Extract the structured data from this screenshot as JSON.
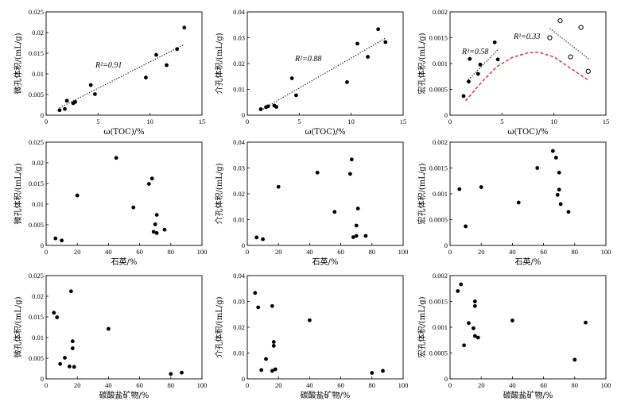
{
  "chart_data": [
    {
      "id": "a",
      "type": "scatter",
      "xlabel": "ω(TOC)/%",
      "ylabel": "微孔体积/(mL/g)",
      "xlim": [
        0,
        15
      ],
      "ylim": [
        0,
        0.025
      ],
      "xticks": [
        "0",
        "5",
        "10",
        "15"
      ],
      "yticks": [
        "0",
        "0.005",
        "0.01",
        "0.015",
        "0.02",
        "0.025"
      ],
      "points": [
        [
          1.3,
          0.0012
        ],
        [
          1.8,
          0.0015
        ],
        [
          2.0,
          0.0035
        ],
        [
          2.6,
          0.0029
        ],
        [
          2.8,
          0.0032
        ],
        [
          4.3,
          0.0073
        ],
        [
          4.7,
          0.0051
        ],
        [
          9.6,
          0.0091
        ],
        [
          10.6,
          0.0146
        ],
        [
          11.6,
          0.0121
        ],
        [
          12.6,
          0.016
        ],
        [
          13.3,
          0.0212
        ]
      ],
      "trendlines": [
        {
          "x": [
            1.3,
            13.3
          ],
          "y": [
            0.0018,
            0.0171
          ],
          "color": "#000000",
          "label": "R²=0.91"
        }
      ]
    },
    {
      "id": "b",
      "type": "scatter",
      "xlabel": "ω(TOC)/%",
      "ylabel": "介孔体积/(mL/g)",
      "xlim": [
        0,
        15
      ],
      "ylim": [
        0,
        0.04
      ],
      "xticks": [
        "0",
        "5",
        "10",
        "15"
      ],
      "yticks": [
        "0",
        "0.01",
        "0.02",
        "0.03",
        "0.04"
      ],
      "points": [
        [
          1.3,
          0.0023
        ],
        [
          1.8,
          0.0031
        ],
        [
          2.0,
          0.0034
        ],
        [
          2.6,
          0.0037
        ],
        [
          2.8,
          0.0032
        ],
        [
          4.3,
          0.0143
        ],
        [
          4.7,
          0.0077
        ],
        [
          9.6,
          0.0128
        ],
        [
          10.6,
          0.0277
        ],
        [
          11.6,
          0.0226
        ],
        [
          12.6,
          0.0333
        ],
        [
          13.3,
          0.0283
        ]
      ],
      "trendlines": [
        {
          "x": [
            1.3,
            13.3
          ],
          "y": [
            0.0019,
            0.0298
          ],
          "color": "#000000",
          "label": "R²=0.88"
        }
      ]
    },
    {
      "id": "c",
      "type": "scatter",
      "xlabel": "ω(TOC)/%",
      "ylabel": "宏孔体积/(mL/g)",
      "xlim": [
        0,
        15
      ],
      "ylim": [
        0,
        0.002
      ],
      "xticks": [
        "0",
        "5",
        "10",
        "15"
      ],
      "yticks": [
        "0",
        "0.0005",
        "0.001",
        "0.0015",
        "0.002"
      ],
      "points": [
        [
          1.3,
          0.00037
        ],
        [
          1.8,
          0.00065
        ],
        [
          1.9,
          0.00109
        ],
        [
          2.7,
          0.0008
        ],
        [
          2.9,
          0.00098
        ],
        [
          4.3,
          0.00141
        ],
        [
          4.6,
          0.00108
        ]
      ],
      "open_points": [
        [
          9.6,
          0.0015
        ],
        [
          10.6,
          0.00183
        ],
        [
          11.6,
          0.00113
        ],
        [
          12.6,
          0.0017
        ],
        [
          13.3,
          0.00085
        ]
      ],
      "trendlines": [
        {
          "x": [
            1.6,
            4.7
          ],
          "y": [
            0.00065,
            0.00129
          ],
          "color": "#000000",
          "label": "R²=0.58"
        },
        {
          "x": [
            9.6,
            13.4
          ],
          "y": [
            0.00168,
            0.00108
          ],
          "color": "#000000",
          "label": "R²=0.33"
        }
      ],
      "curve": {
        "color": "#e8232b",
        "x": [
          1.5,
          3,
          4.5,
          6,
          7.5,
          8.5,
          10,
          11.5,
          13.3
        ],
        "y": [
          0.00028,
          0.00063,
          0.00094,
          0.00112,
          0.00121,
          0.00122,
          0.00113,
          0.00092,
          0.00068
        ]
      }
    },
    {
      "id": "d",
      "type": "scatter",
      "xlabel": "石英/%",
      "ylabel": "微孔体积/(mL/g)",
      "xlim": [
        0,
        100
      ],
      "ylim": [
        0,
        0.025
      ],
      "xticks": [
        "0",
        "20",
        "40",
        "60",
        "80",
        "100"
      ],
      "yticks": [
        "0",
        "0.005",
        "0.01",
        "0.015",
        "0.02",
        "0.025"
      ],
      "points": [
        [
          6,
          0.0017
        ],
        [
          10,
          0.0012
        ],
        [
          20,
          0.0121
        ],
        [
          45,
          0.0212
        ],
        [
          56,
          0.0092
        ],
        [
          66,
          0.0149
        ],
        [
          68,
          0.0162
        ],
        [
          69,
          0.0033
        ],
        [
          70,
          0.0051
        ],
        [
          71,
          0.003
        ],
        [
          71,
          0.0074
        ],
        [
          76,
          0.0038
        ]
      ]
    },
    {
      "id": "e",
      "type": "scatter",
      "xlabel": "石英/%",
      "ylabel": "介孔体积/(mL/g)",
      "xlim": [
        0,
        100
      ],
      "ylim": [
        0,
        0.04
      ],
      "xticks": [
        "0",
        "20",
        "40",
        "60",
        "80",
        "100"
      ],
      "yticks": [
        "0",
        "0.01",
        "0.02",
        "0.03",
        "0.04"
      ],
      "points": [
        [
          6,
          0.0031
        ],
        [
          10,
          0.0024
        ],
        [
          20,
          0.0227
        ],
        [
          45,
          0.0282
        ],
        [
          56,
          0.013
        ],
        [
          66,
          0.0277
        ],
        [
          67,
          0.0333
        ],
        [
          68,
          0.0032
        ],
        [
          70,
          0.0037
        ],
        [
          70,
          0.0077
        ],
        [
          71,
          0.0143
        ],
        [
          76,
          0.0037
        ]
      ]
    },
    {
      "id": "f",
      "type": "scatter",
      "xlabel": "石英/%",
      "ylabel": "宏孔体积/(mL/g)",
      "xlim": [
        0,
        100
      ],
      "ylim": [
        0,
        0.002
      ],
      "xticks": [
        "0",
        "20",
        "40",
        "60",
        "80",
        "100"
      ],
      "yticks": [
        "0",
        "0.0005",
        "0.001",
        "0.0015",
        "0.002"
      ],
      "points": [
        [
          6,
          0.00109
        ],
        [
          10,
          0.00037
        ],
        [
          20,
          0.00113
        ],
        [
          44,
          0.00083
        ],
        [
          56,
          0.0015
        ],
        [
          66,
          0.00183
        ],
        [
          68,
          0.0017
        ],
        [
          69,
          0.00098
        ],
        [
          70,
          0.00141
        ],
        [
          70,
          0.00108
        ],
        [
          71,
          0.0008
        ],
        [
          76,
          0.00065
        ]
      ]
    },
    {
      "id": "g",
      "type": "scatter",
      "xlabel": "碳酸盐矿物/%",
      "ylabel": "微孔体积/(mL/g)",
      "xlim": [
        0,
        100
      ],
      "ylim": [
        0,
        0.025
      ],
      "xticks": [
        "0",
        "20",
        "40",
        "60",
        "80",
        "100"
      ],
      "yticks": [
        "0",
        "0.005",
        "0.01",
        "0.015",
        "0.02",
        "0.025"
      ],
      "points": [
        [
          5,
          0.016
        ],
        [
          7,
          0.0149
        ],
        [
          9,
          0.0036
        ],
        [
          12,
          0.0051
        ],
        [
          15,
          0.003
        ],
        [
          16,
          0.0212
        ],
        [
          17,
          0.0091
        ],
        [
          17,
          0.0074
        ],
        [
          18,
          0.0029
        ],
        [
          40,
          0.0121
        ],
        [
          80,
          0.0012
        ],
        [
          87,
          0.0015
        ]
      ]
    },
    {
      "id": "h",
      "type": "scatter",
      "xlabel": "碳酸盐矿物/%",
      "ylabel": "介孔体积/(mL/g)",
      "xlim": [
        0,
        100
      ],
      "ylim": [
        0,
        0.04
      ],
      "xticks": [
        "0",
        "20",
        "40",
        "60",
        "80",
        "100"
      ],
      "yticks": [
        "0",
        "0.01",
        "0.02",
        "0.03",
        "0.04"
      ],
      "points": [
        [
          5,
          0.0333
        ],
        [
          7,
          0.0277
        ],
        [
          9,
          0.0034
        ],
        [
          12,
          0.0077
        ],
        [
          16,
          0.0282
        ],
        [
          16,
          0.0031
        ],
        [
          17,
          0.0128
        ],
        [
          17,
          0.0143
        ],
        [
          18,
          0.0037
        ],
        [
          40,
          0.0227
        ],
        [
          80,
          0.0023
        ],
        [
          87,
          0.0031
        ]
      ]
    },
    {
      "id": "i",
      "type": "scatter",
      "xlabel": "碳酸盐矿物/%",
      "ylabel": "宏孔体积/(mL/g)",
      "xlim": [
        0,
        100
      ],
      "ylim": [
        0,
        0.002
      ],
      "xticks": [
        "0",
        "20",
        "40",
        "60",
        "80",
        "100"
      ],
      "yticks": [
        "0",
        "0.0005",
        "0.001",
        "0.0015",
        "0.002"
      ],
      "points": [
        [
          5,
          0.0017
        ],
        [
          7,
          0.00183
        ],
        [
          9,
          0.00065
        ],
        [
          12,
          0.00108
        ],
        [
          15,
          0.00098
        ],
        [
          16,
          0.0015
        ],
        [
          16,
          0.00141
        ],
        [
          16,
          0.00083
        ],
        [
          18,
          0.0008
        ],
        [
          40,
          0.00113
        ],
        [
          80,
          0.00037
        ],
        [
          87,
          0.00109
        ]
      ]
    }
  ]
}
